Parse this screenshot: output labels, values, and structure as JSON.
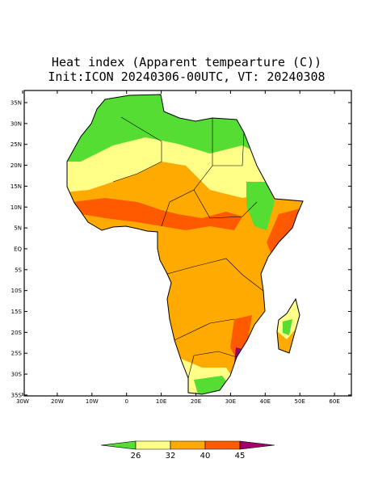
{
  "title": [
    "Heat index (Apparent tempearture (C))",
    "Init:ICON 20240306-00UTC, VT: 20240308"
  ],
  "lat_ticks": [
    "35N",
    "30N",
    "25N",
    "20N",
    "15N",
    "10N",
    "5N",
    "EQ",
    "5S",
    "10S",
    "15S",
    "20S",
    "25S",
    "30S",
    "35S"
  ],
  "lon_ticks": [
    "30W",
    "20W",
    "10W",
    "0",
    "10E",
    "20E",
    "30E",
    "40E",
    "50E",
    "60E"
  ],
  "colorbar": {
    "labels": [
      "26",
      "32",
      "40",
      "45"
    ],
    "colors": [
      "#55dd33",
      "#ffff88",
      "#ffaa00",
      "#ff5a00",
      "#a0006a"
    ]
  }
}
